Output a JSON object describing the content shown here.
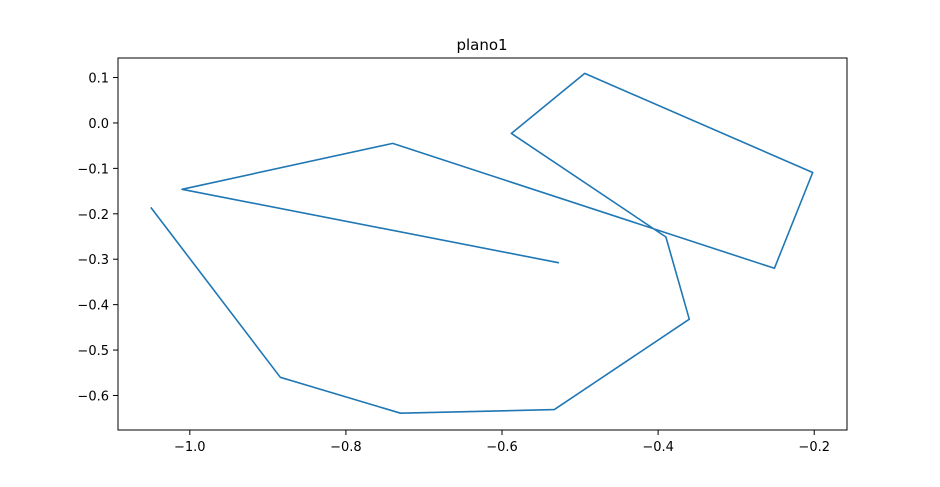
{
  "chart_data": {
    "type": "line",
    "title": "plano1",
    "xlabel": "",
    "ylabel": "",
    "xlim": [
      -1.092,
      -0.158
    ],
    "ylim": [
      -0.676,
      0.143
    ],
    "xticks": [
      -1.0,
      -0.8,
      -0.6,
      -0.4,
      -0.2
    ],
    "xtick_labels": [
      "−1.0",
      "−0.8",
      "−0.6",
      "−0.4",
      "−0.2"
    ],
    "yticks": [
      0.1,
      0.0,
      -0.1,
      -0.2,
      -0.3,
      -0.4,
      -0.5,
      -0.6
    ],
    "ytick_labels": [
      "0.1",
      "0.0",
      "−0.1",
      "−0.2",
      "−0.3",
      "−0.4",
      "−0.5",
      "−0.6"
    ],
    "grid": false,
    "series": [
      {
        "color": "#1f77b4",
        "points": [
          [
            -1.05,
            -0.186
          ],
          [
            -0.884,
            -0.56
          ],
          [
            -0.73,
            -0.639
          ],
          [
            -0.533,
            -0.631
          ],
          [
            -0.36,
            -0.432
          ],
          [
            -0.39,
            -0.251
          ],
          [
            -0.588,
            -0.023
          ],
          [
            -0.494,
            0.109
          ],
          [
            -0.202,
            -0.109
          ],
          [
            -0.251,
            -0.32
          ],
          [
            -0.74,
            -0.045
          ],
          [
            -1.01,
            -0.146
          ],
          [
            -0.527,
            -0.308
          ]
        ]
      }
    ]
  }
}
